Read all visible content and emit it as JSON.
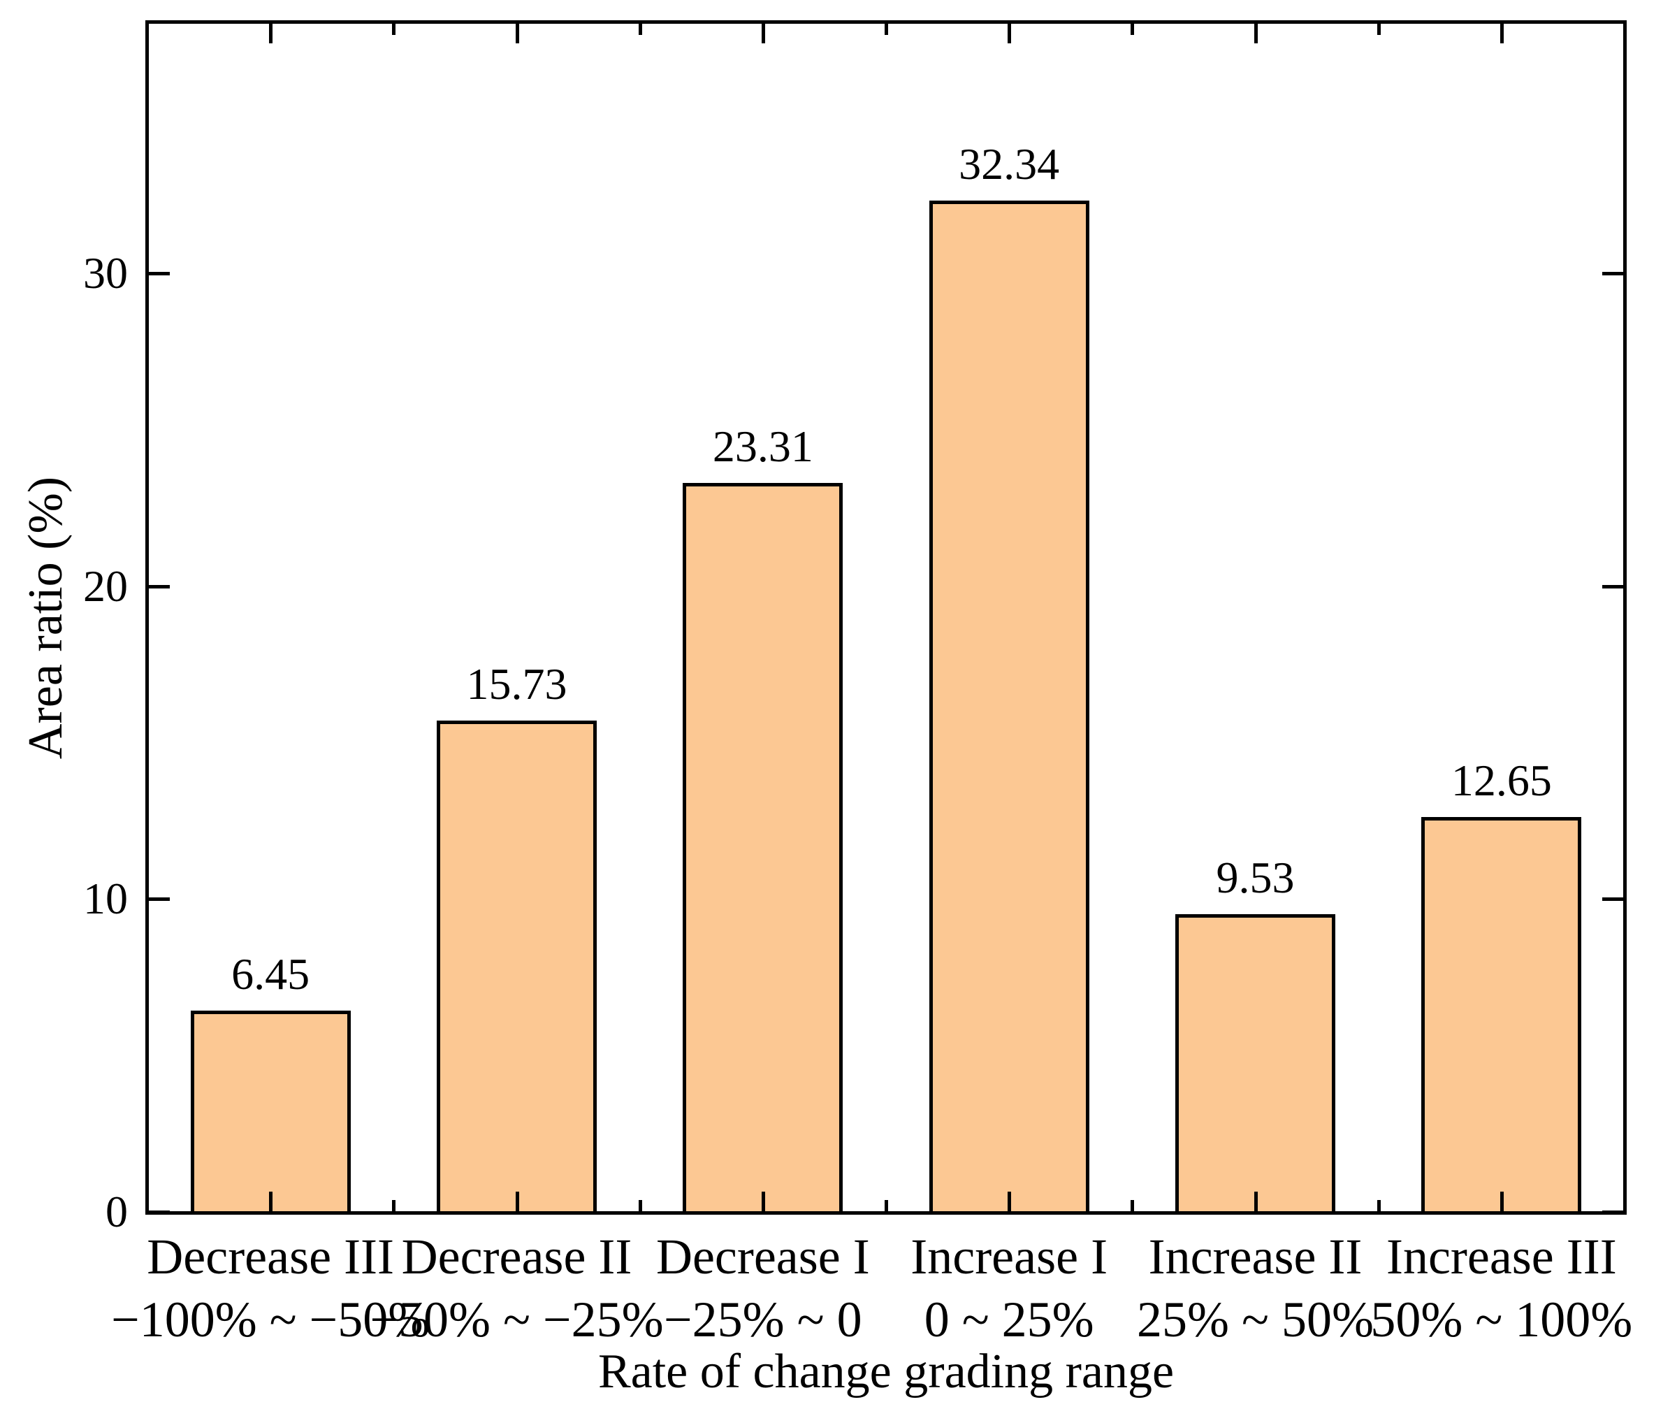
{
  "chart_data": {
    "type": "bar",
    "title": "",
    "xlabel": "Rate of change grading range",
    "ylabel": "Area ratio (%)",
    "categories": [
      {
        "name": "Decrease III",
        "range": "−100% ~ −50%"
      },
      {
        "name": "Decrease II",
        "range": "−50% ~ −25%"
      },
      {
        "name": "Decrease I",
        "range": "−25% ~ 0"
      },
      {
        "name": "Increase I",
        "range": "0 ~ 25%"
      },
      {
        "name": "Increase II",
        "range": "25% ~ 50%"
      },
      {
        "name": "Increase III",
        "range": "50% ~ 100%"
      }
    ],
    "values": [
      6.45,
      15.73,
      23.31,
      32.34,
      9.53,
      12.65
    ],
    "bar_labels": [
      "6.45",
      "15.73",
      "23.31",
      "32.34",
      "9.53",
      "12.65"
    ],
    "yticks": [
      0,
      10,
      20,
      30
    ],
    "ytick_labels": [
      "0",
      "10",
      "20",
      "30"
    ],
    "ylim": [
      0,
      38
    ],
    "grid": false,
    "legend": null,
    "tick_direction": "in",
    "colors": {
      "bar_fill": "#FCC893",
      "bar_edge": "#000000",
      "axis": "#000000",
      "text": "#000000",
      "background": "#ffffff"
    }
  }
}
